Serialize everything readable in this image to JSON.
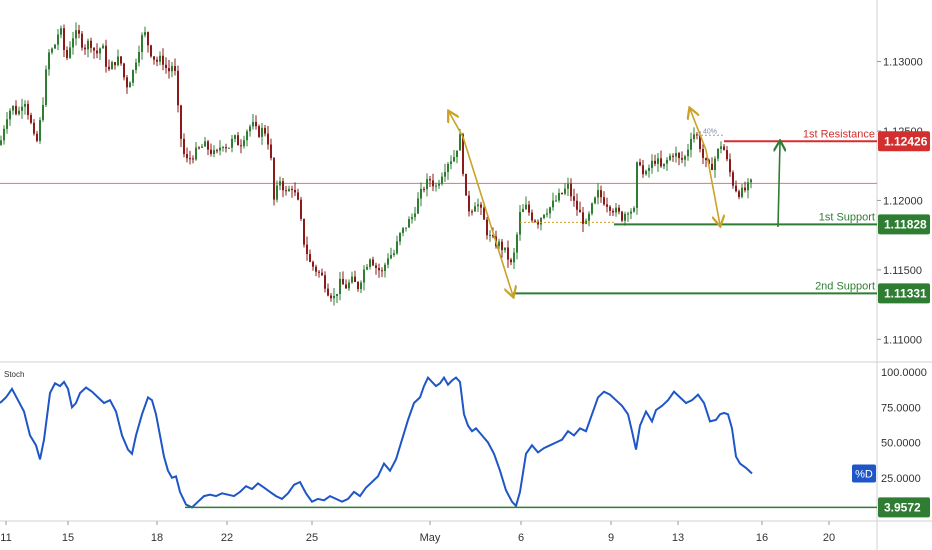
{
  "colors": {
    "up": "#26a69a",
    "down": "#ef5350",
    "candle_up_body": "#2e7d32",
    "candle_down_body": "#8b1a1a",
    "resistance": "#d32f2f",
    "support": "#2e7d32",
    "arrow": "#c9a227",
    "stoch_line": "#1e56c8",
    "stoch_badge": "#1e56c8",
    "axis_text": "#333333",
    "current_price_line": "#e57373",
    "separator": "#d0d0d0"
  },
  "price_axis": {
    "ticks": [
      1.13,
      1.125,
      1.12,
      1.115,
      1.11
    ],
    "tick_labels": [
      "1.13000",
      "1.12500",
      "1.12000",
      "1.11500",
      "1.11000"
    ],
    "ylim": [
      1.1088,
      1.134
    ]
  },
  "stoch_axis": {
    "ticks": [
      100,
      75,
      50,
      25
    ],
    "tick_labels": [
      "100.0000",
      "75.0000",
      "50.0000",
      "25.0000"
    ],
    "ylim": [
      0,
      100
    ]
  },
  "x_axis": {
    "labels": [
      "11",
      "15",
      "18",
      "22",
      "25",
      "May",
      "6",
      "9",
      "13",
      "16",
      "20"
    ]
  },
  "levels": {
    "resistance": {
      "label": "1st Resistance",
      "value": 1.12426,
      "value_text": "1.12426"
    },
    "support1": {
      "label": "1st Support",
      "value": 1.11828,
      "value_text": "1.11828"
    },
    "support2": {
      "label": "2nd Support",
      "value": 1.11331,
      "value_text": "1.11331"
    },
    "stoch_level": {
      "value": 3.9572,
      "value_text": "3.9572"
    },
    "pct_label": "40%"
  },
  "stoch": {
    "title": "Stoch",
    "badge": "%D"
  },
  "chart_data": {
    "type": "candlestick",
    "title": "",
    "xlabel": "",
    "ylabel": "",
    "x_ticks": [
      "11",
      "15",
      "18",
      "22",
      "25",
      "May",
      "6",
      "9",
      "13",
      "16",
      "20"
    ],
    "ylim": [
      1.1088,
      1.134
    ],
    "grid": false,
    "price_path": [
      [
        0,
        1.124
      ],
      [
        6,
        1.126
      ],
      [
        12,
        1.1268
      ],
      [
        18,
        1.1262
      ],
      [
        24,
        1.1275
      ],
      [
        30,
        1.1258
      ],
      [
        36,
        1.1238
      ],
      [
        42,
        1.1265
      ],
      [
        48,
        1.1305
      ],
      [
        54,
        1.131
      ],
      [
        60,
        1.1325
      ],
      [
        66,
        1.13
      ],
      [
        72,
        1.1318
      ],
      [
        78,
        1.132
      ],
      [
        84,
        1.131
      ],
      [
        90,
        1.1315
      ],
      [
        96,
        1.1305
      ],
      [
        102,
        1.1312
      ],
      [
        108,
        1.1292
      ],
      [
        114,
        1.13
      ],
      [
        120,
        1.1302
      ],
      [
        126,
        1.1282
      ],
      [
        132,
        1.129
      ],
      [
        138,
        1.1308
      ],
      [
        144,
        1.1322
      ],
      [
        150,
        1.1308
      ],
      [
        156,
        1.13
      ],
      [
        162,
        1.1302
      ],
      [
        168,
        1.1292
      ],
      [
        174,
        1.13
      ],
      [
        178,
        1.1265
      ],
      [
        182,
        1.1238
      ],
      [
        186,
        1.1228
      ],
      [
        192,
        1.1232
      ],
      [
        198,
        1.1236
      ],
      [
        204,
        1.124
      ],
      [
        210,
        1.1236
      ],
      [
        216,
        1.1232
      ],
      [
        222,
        1.1242
      ],
      [
        228,
        1.1238
      ],
      [
        234,
        1.1245
      ],
      [
        240,
        1.124
      ],
      [
        246,
        1.125
      ],
      [
        252,
        1.1255
      ],
      [
        258,
        1.1248
      ],
      [
        264,
        1.1252
      ],
      [
        270,
        1.1238
      ],
      [
        274,
        1.12
      ],
      [
        280,
        1.1215
      ],
      [
        286,
        1.1205
      ],
      [
        292,
        1.121
      ],
      [
        298,
        1.1198
      ],
      [
        304,
        1.117
      ],
      [
        310,
        1.1155
      ],
      [
        316,
        1.115
      ],
      [
        322,
        1.1145
      ],
      [
        328,
        1.1135
      ],
      [
        334,
        1.113
      ],
      [
        340,
        1.114
      ],
      [
        346,
        1.1138
      ],
      [
        352,
        1.1142
      ],
      [
        358,
        1.1138
      ],
      [
        364,
        1.115
      ],
      [
        370,
        1.116
      ],
      [
        376,
        1.1152
      ],
      [
        382,
        1.1148
      ],
      [
        388,
        1.116
      ],
      [
        394,
        1.1162
      ],
      [
        400,
        1.1175
      ],
      [
        406,
        1.1182
      ],
      [
        412,
        1.1188
      ],
      [
        418,
        1.12
      ],
      [
        424,
        1.121
      ],
      [
        430,
        1.1215
      ],
      [
        436,
        1.121
      ],
      [
        442,
        1.122
      ],
      [
        448,
        1.1228
      ],
      [
        454,
        1.1232
      ],
      [
        460,
        1.1245
      ],
      [
        466,
        1.12
      ],
      [
        470,
        1.1192
      ],
      [
        476,
        1.12
      ],
      [
        482,
        1.119
      ],
      [
        488,
        1.1175
      ],
      [
        494,
        1.117
      ],
      [
        500,
        1.1168
      ],
      [
        506,
        1.1162
      ],
      [
        512,
        1.1152
      ],
      [
        516,
        1.117
      ],
      [
        520,
        1.119
      ],
      [
        526,
        1.1195
      ],
      [
        532,
        1.1188
      ],
      [
        538,
        1.1185
      ],
      [
        544,
        1.1192
      ],
      [
        550,
        1.1195
      ],
      [
        556,
        1.12
      ],
      [
        562,
        1.1205
      ],
      [
        568,
        1.121
      ],
      [
        574,
        1.1198
      ],
      [
        580,
        1.119
      ],
      [
        586,
        1.1182
      ],
      [
        592,
        1.1195
      ],
      [
        598,
        1.1205
      ],
      [
        604,
        1.12
      ],
      [
        610,
        1.1196
      ],
      [
        616,
        1.1192
      ],
      [
        622,
        1.1188
      ],
      [
        628,
        1.1194
      ],
      [
        634,
        1.1192
      ],
      [
        638,
        1.1235
      ],
      [
        644,
        1.1215
      ],
      [
        650,
        1.1225
      ],
      [
        656,
        1.123
      ],
      [
        662,
        1.1222
      ],
      [
        668,
        1.123
      ],
      [
        674,
        1.1235
      ],
      [
        680,
        1.1228
      ],
      [
        686,
        1.1232
      ],
      [
        692,
        1.125
      ],
      [
        698,
        1.1245
      ],
      [
        704,
        1.1228
      ],
      [
        710,
        1.1222
      ],
      [
        716,
        1.1232
      ],
      [
        722,
        1.1242
      ],
      [
        728,
        1.1225
      ],
      [
        734,
        1.121
      ],
      [
        740,
        1.1205
      ],
      [
        746,
        1.1208
      ],
      [
        752,
        1.1213
      ]
    ],
    "stoch_path": [
      [
        0,
        78
      ],
      [
        6,
        82
      ],
      [
        12,
        88
      ],
      [
        18,
        80
      ],
      [
        24,
        72
      ],
      [
        30,
        55
      ],
      [
        36,
        48
      ],
      [
        40,
        38
      ],
      [
        44,
        52
      ],
      [
        50,
        85
      ],
      [
        55,
        92
      ],
      [
        60,
        90
      ],
      [
        64,
        93
      ],
      [
        68,
        88
      ],
      [
        72,
        75
      ],
      [
        76,
        78
      ],
      [
        80,
        85
      ],
      [
        86,
        89
      ],
      [
        92,
        86
      ],
      [
        98,
        82
      ],
      [
        104,
        78
      ],
      [
        110,
        80
      ],
      [
        116,
        72
      ],
      [
        122,
        55
      ],
      [
        128,
        45
      ],
      [
        132,
        42
      ],
      [
        136,
        55
      ],
      [
        142,
        70
      ],
      [
        148,
        82
      ],
      [
        152,
        80
      ],
      [
        156,
        70
      ],
      [
        160,
        55
      ],
      [
        164,
        40
      ],
      [
        168,
        30
      ],
      [
        172,
        25
      ],
      [
        176,
        26
      ],
      [
        180,
        15
      ],
      [
        186,
        6
      ],
      [
        192,
        4
      ],
      [
        198,
        8
      ],
      [
        204,
        12
      ],
      [
        210,
        13
      ],
      [
        216,
        12
      ],
      [
        222,
        14
      ],
      [
        228,
        13
      ],
      [
        234,
        12
      ],
      [
        240,
        15
      ],
      [
        246,
        19
      ],
      [
        252,
        17
      ],
      [
        258,
        21
      ],
      [
        264,
        18
      ],
      [
        270,
        15
      ],
      [
        276,
        12
      ],
      [
        282,
        10
      ],
      [
        288,
        14
      ],
      [
        294,
        20
      ],
      [
        300,
        22
      ],
      [
        306,
        14
      ],
      [
        312,
        8
      ],
      [
        318,
        10
      ],
      [
        324,
        9
      ],
      [
        330,
        12
      ],
      [
        336,
        10
      ],
      [
        342,
        8
      ],
      [
        348,
        10
      ],
      [
        354,
        15
      ],
      [
        360,
        12
      ],
      [
        366,
        18
      ],
      [
        372,
        22
      ],
      [
        378,
        26
      ],
      [
        384,
        35
      ],
      [
        390,
        30
      ],
      [
        396,
        38
      ],
      [
        402,
        52
      ],
      [
        408,
        66
      ],
      [
        414,
        78
      ],
      [
        420,
        82
      ],
      [
        424,
        90
      ],
      [
        428,
        96
      ],
      [
        432,
        93
      ],
      [
        436,
        90
      ],
      [
        440,
        92
      ],
      [
        444,
        96
      ],
      [
        448,
        91
      ],
      [
        452,
        94
      ],
      [
        456,
        96
      ],
      [
        460,
        93
      ],
      [
        464,
        70
      ],
      [
        468,
        62
      ],
      [
        472,
        58
      ],
      [
        476,
        60
      ],
      [
        482,
        55
      ],
      [
        488,
        50
      ],
      [
        494,
        42
      ],
      [
        500,
        30
      ],
      [
        506,
        16
      ],
      [
        512,
        8
      ],
      [
        516,
        5
      ],
      [
        520,
        15
      ],
      [
        526,
        42
      ],
      [
        532,
        48
      ],
      [
        538,
        43
      ],
      [
        544,
        46
      ],
      [
        550,
        48
      ],
      [
        556,
        50
      ],
      [
        562,
        52
      ],
      [
        568,
        58
      ],
      [
        574,
        55
      ],
      [
        580,
        60
      ],
      [
        586,
        58
      ],
      [
        592,
        70
      ],
      [
        598,
        82
      ],
      [
        604,
        86
      ],
      [
        610,
        84
      ],
      [
        616,
        80
      ],
      [
        622,
        76
      ],
      [
        628,
        70
      ],
      [
        632,
        58
      ],
      [
        636,
        45
      ],
      [
        640,
        62
      ],
      [
        646,
        72
      ],
      [
        652,
        65
      ],
      [
        656,
        73
      ],
      [
        662,
        76
      ],
      [
        668,
        80
      ],
      [
        674,
        86
      ],
      [
        680,
        82
      ],
      [
        686,
        78
      ],
      [
        692,
        80
      ],
      [
        698,
        84
      ],
      [
        704,
        78
      ],
      [
        710,
        65
      ],
      [
        716,
        66
      ],
      [
        720,
        70
      ],
      [
        724,
        71
      ],
      [
        728,
        70
      ],
      [
        732,
        60
      ],
      [
        736,
        40
      ],
      [
        740,
        35
      ],
      [
        746,
        32
      ],
      [
        752,
        28
      ]
    ]
  }
}
